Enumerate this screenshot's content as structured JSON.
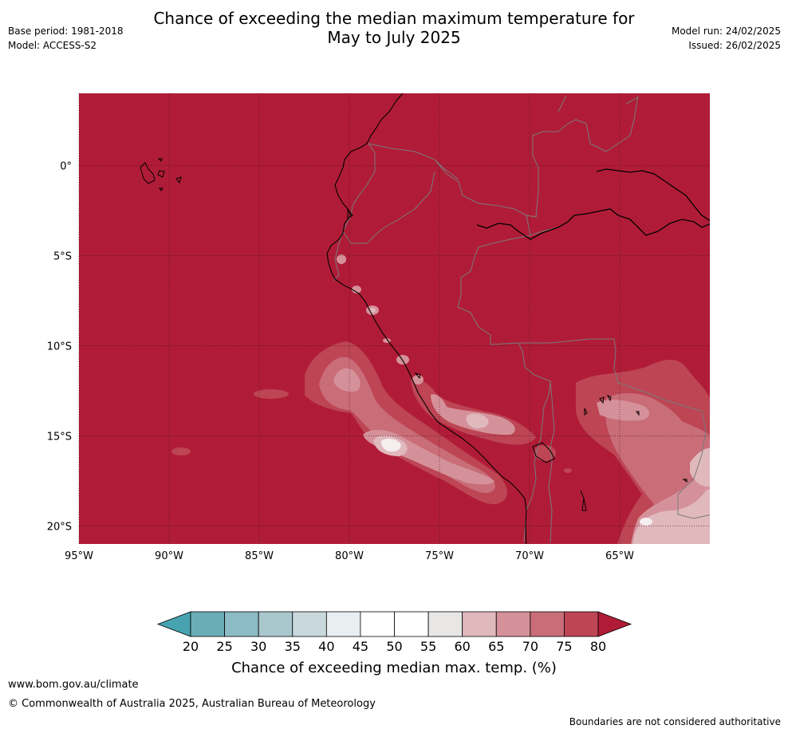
{
  "header": {
    "title_line1": "Chance of exceeding the median maximum temperature for",
    "title_line2": "May to July 2025",
    "base_period": "Base period: 1981-2018",
    "model": "Model: ACCESS-S2",
    "model_run": "Model run: 24/02/2025",
    "issued": "Issued: 26/02/2025"
  },
  "map": {
    "lon_range": [
      -95,
      -60
    ],
    "lat_range": [
      -21,
      4
    ],
    "lat_ticks": [
      {
        "value": 0,
        "label": "0°"
      },
      {
        "value": -5,
        "label": "5°S"
      },
      {
        "value": -10,
        "label": "10°S"
      },
      {
        "value": -15,
        "label": "15°S"
      },
      {
        "value": -20,
        "label": "20°S"
      }
    ],
    "lon_ticks": [
      {
        "value": -95,
        "label": "95°W"
      },
      {
        "value": -90,
        "label": "90°W"
      },
      {
        "value": -85,
        "label": "85°W"
      },
      {
        "value": -80,
        "label": "80°W"
      },
      {
        "value": -75,
        "label": "75°W"
      },
      {
        "value": -70,
        "label": "70°W"
      },
      {
        "value": -65,
        "label": "65°W"
      }
    ],
    "background_color": "#b01c37",
    "gridline_color": "#3a0a14",
    "coastline_color": "#000000",
    "border_color": "#7a7a7a"
  },
  "colorbar": {
    "ticks": [
      "20",
      "25",
      "30",
      "35",
      "40",
      "45",
      "50",
      "55",
      "60",
      "65",
      "70",
      "75",
      "80"
    ],
    "colors": [
      "#6aacb8",
      "#8cbbc5",
      "#a9c8ce",
      "#c9d8dc",
      "#e9eff1",
      "#ffffff",
      "#ffffff",
      "#e9e6e6",
      "#e0b9bd",
      "#d5919a",
      "#c96d78",
      "#bd4554"
    ],
    "under_color": "#47a3b0",
    "over_color": "#b01c37",
    "label": "Chance of exceeding median max. temp. (%)"
  },
  "footer": {
    "url": "www.bom.gov.au/climate",
    "copyright": "© Commonwealth of Australia 2025, Australian Bureau of Meteorology",
    "note": "Boundaries are not considered authoritative"
  }
}
